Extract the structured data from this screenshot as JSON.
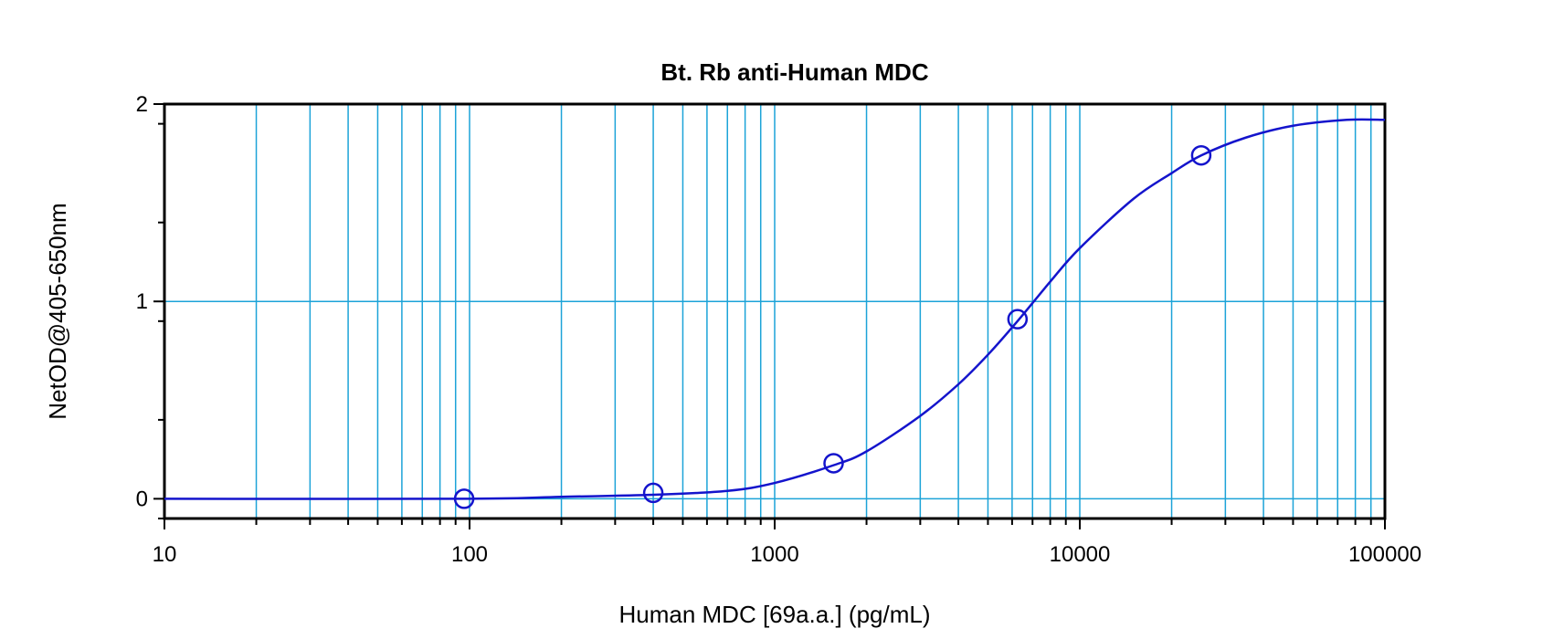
{
  "chart_data": {
    "type": "scatter",
    "title": "Bt. Rb anti-Human MDC",
    "xlabel": "Human MDC [69a.a.] (pg/mL)",
    "ylabel": "NetOD@405-650nm",
    "x_scale": "log",
    "xlim": [
      10,
      100000
    ],
    "ylim": [
      -0.1,
      2
    ],
    "x_ticks": [
      "10",
      "100",
      "1000",
      "10000",
      "100000"
    ],
    "y_ticks": [
      "0",
      "1",
      "2"
    ],
    "grid": true,
    "colors": {
      "series": "#1414cc",
      "grid": "#1ca3d8",
      "frame": "#000000"
    },
    "points": [
      {
        "x": 96,
        "y": 0.0
      },
      {
        "x": 400,
        "y": 0.03
      },
      {
        "x": 1560,
        "y": 0.18
      },
      {
        "x": 6250,
        "y": 0.91
      },
      {
        "x": 25000,
        "y": 1.74
      }
    ],
    "fit_curve": [
      {
        "x": 10,
        "y": 0.0
      },
      {
        "x": 100,
        "y": 0.0
      },
      {
        "x": 200,
        "y": 0.01
      },
      {
        "x": 400,
        "y": 0.02
      },
      {
        "x": 700,
        "y": 0.04
      },
      {
        "x": 1000,
        "y": 0.08
      },
      {
        "x": 1560,
        "y": 0.17
      },
      {
        "x": 2000,
        "y": 0.24
      },
      {
        "x": 3000,
        "y": 0.42
      },
      {
        "x": 4000,
        "y": 0.58
      },
      {
        "x": 5000,
        "y": 0.73
      },
      {
        "x": 6250,
        "y": 0.9
      },
      {
        "x": 8000,
        "y": 1.1
      },
      {
        "x": 10000,
        "y": 1.27
      },
      {
        "x": 15000,
        "y": 1.52
      },
      {
        "x": 20000,
        "y": 1.65
      },
      {
        "x": 25000,
        "y": 1.74
      },
      {
        "x": 35000,
        "y": 1.83
      },
      {
        "x": 50000,
        "y": 1.89
      },
      {
        "x": 75000,
        "y": 1.92
      },
      {
        "x": 100000,
        "y": 1.92
      }
    ]
  }
}
